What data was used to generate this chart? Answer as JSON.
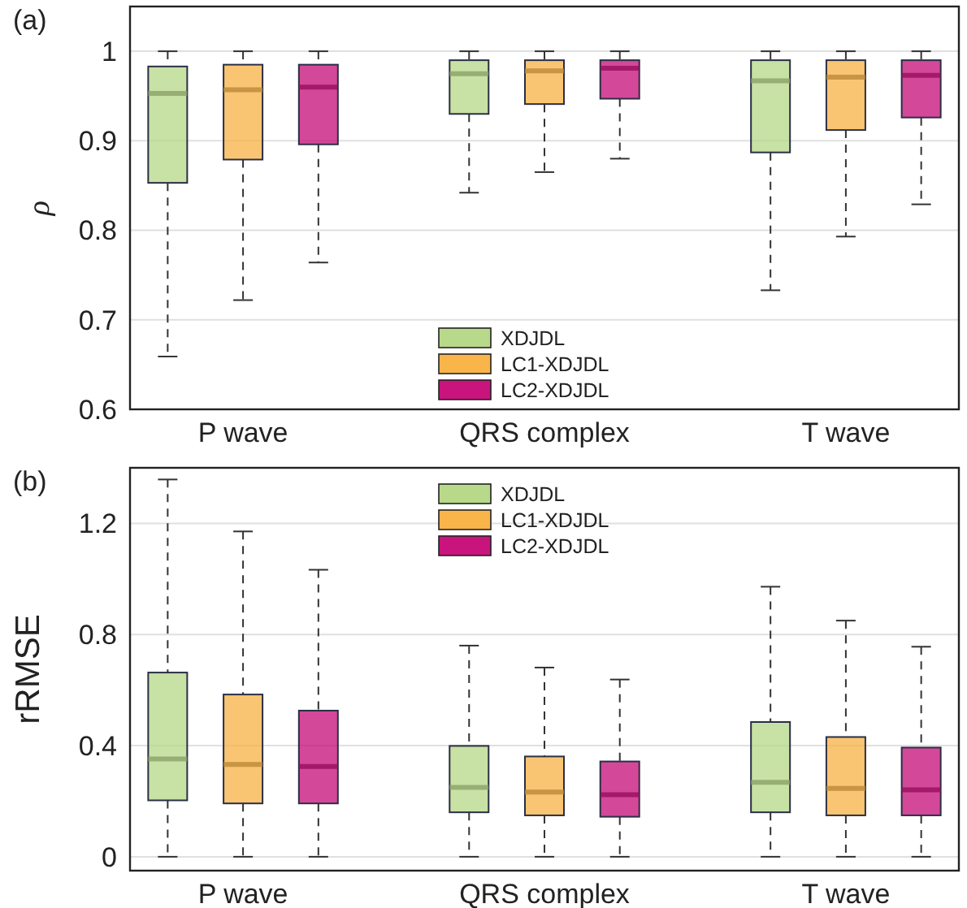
{
  "chart_data": [
    {
      "type": "box",
      "title": "(a)",
      "ylabel": "ρ",
      "categories": [
        "P wave",
        "QRS complex",
        "T wave"
      ],
      "ylim": [
        0.6,
        1.05
      ],
      "yticks": [
        0.6,
        0.7,
        0.8,
        0.9,
        {
          "value": 1,
          "label": "1"
        }
      ],
      "grid": "y",
      "legend": "bottom",
      "series": [
        {
          "name": "XDJDL",
          "color": "#b9d98a",
          "boxes": [
            {
              "low": 0.659,
              "q1": 0.853,
              "median": 0.953,
              "q3": 0.983,
              "high": 1.0
            },
            {
              "low": 0.842,
              "q1": 0.93,
              "median": 0.975,
              "q3": 0.99,
              "high": 1.0
            },
            {
              "low": 0.733,
              "q1": 0.887,
              "median": 0.967,
              "q3": 0.99,
              "high": 1.0
            }
          ]
        },
        {
          "name": "LC1-XDJDL",
          "color": "#f9b54a",
          "boxes": [
            {
              "low": 0.722,
              "q1": 0.879,
              "median": 0.957,
              "q3": 0.985,
              "high": 1.0
            },
            {
              "low": 0.865,
              "q1": 0.941,
              "median": 0.978,
              "q3": 0.99,
              "high": 1.0
            },
            {
              "low": 0.793,
              "q1": 0.912,
              "median": 0.971,
              "q3": 0.99,
              "high": 1.0
            }
          ]
        },
        {
          "name": "LC2-XDJDL",
          "color": "#c8147c",
          "boxes": [
            {
              "low": 0.764,
              "q1": 0.896,
              "median": 0.96,
              "q3": 0.985,
              "high": 1.0
            },
            {
              "low": 0.88,
              "q1": 0.947,
              "median": 0.981,
              "q3": 0.99,
              "high": 1.0
            },
            {
              "low": 0.829,
              "q1": 0.926,
              "median": 0.973,
              "q3": 0.99,
              "high": 1.0
            }
          ]
        }
      ]
    },
    {
      "type": "box",
      "title": "(b)",
      "ylabel": "rRMSE",
      "categories": [
        "P wave",
        "QRS complex",
        "T wave"
      ],
      "ylim": [
        -0.05,
        1.4
      ],
      "yticks": [
        0,
        0.4,
        0.8,
        1.2
      ],
      "grid": "y",
      "legend": "top",
      "series": [
        {
          "name": "XDJDL",
          "color": "#b9d98a",
          "boxes": [
            {
              "low": 0,
              "q1": 0.203,
              "median": 0.352,
              "q3": 0.663,
              "high": 1.358
            },
            {
              "low": 0,
              "q1": 0.16,
              "median": 0.25,
              "q3": 0.399,
              "high": 0.76
            },
            {
              "low": 0,
              "q1": 0.16,
              "median": 0.268,
              "q3": 0.485,
              "high": 0.972
            }
          ]
        },
        {
          "name": "LC1-XDJDL",
          "color": "#f9b54a",
          "boxes": [
            {
              "low": 0,
              "q1": 0.192,
              "median": 0.332,
              "q3": 0.584,
              "high": 1.171
            },
            {
              "low": 0,
              "q1": 0.149,
              "median": 0.233,
              "q3": 0.361,
              "high": 0.681
            },
            {
              "low": 0,
              "q1": 0.149,
              "median": 0.246,
              "q3": 0.431,
              "high": 0.85
            }
          ]
        },
        {
          "name": "LC2-XDJDL",
          "color": "#c8147c",
          "boxes": [
            {
              "low": 0,
              "q1": 0.192,
              "median": 0.325,
              "q3": 0.526,
              "high": 1.033
            },
            {
              "low": 0,
              "q1": 0.144,
              "median": 0.223,
              "q3": 0.343,
              "high": 0.638
            },
            {
              "low": 0,
              "q1": 0.149,
              "median": 0.241,
              "q3": 0.393,
              "high": 0.756
            }
          ]
        }
      ]
    }
  ]
}
